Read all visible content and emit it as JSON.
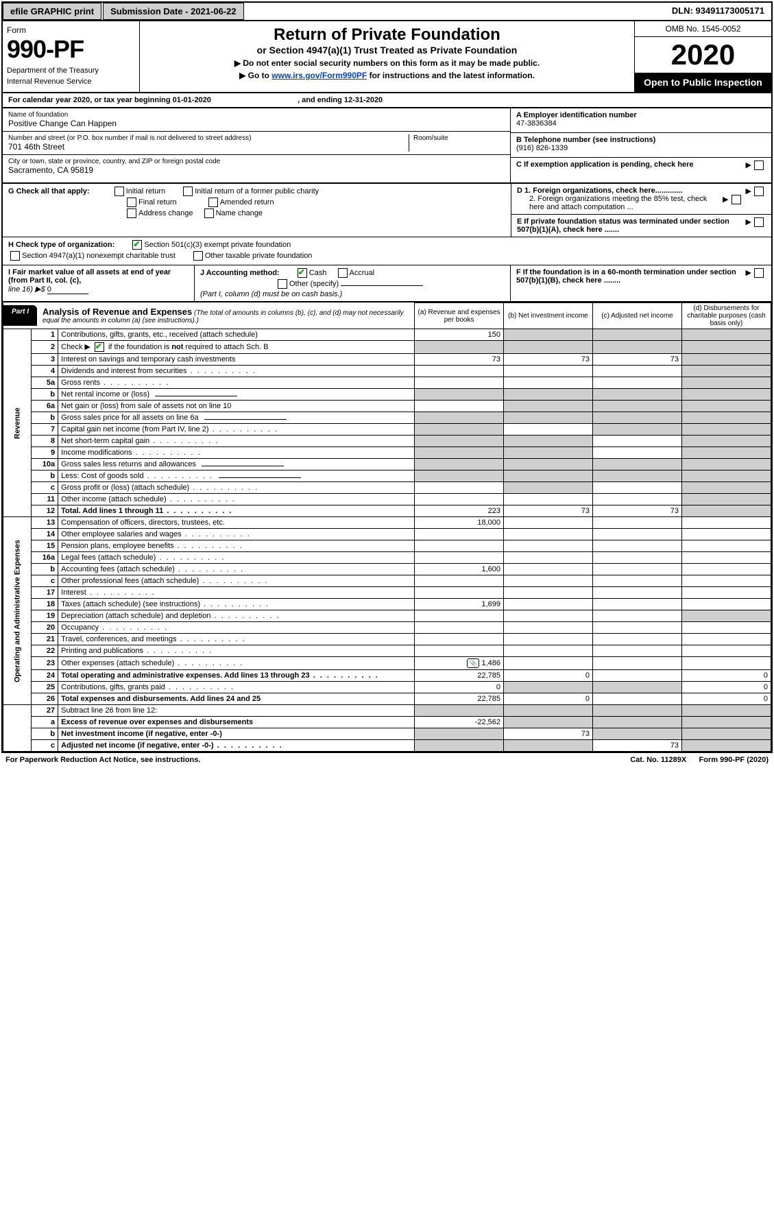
{
  "topbar": {
    "efile": "efile GRAPHIC print",
    "submission_label": "Submission Date - 2021-06-22",
    "dln": "DLN: 93491173005171"
  },
  "header": {
    "form_label": "Form",
    "form_number": "990-PF",
    "dept1": "Department of the Treasury",
    "dept2": "Internal Revenue Service",
    "title": "Return of Private Foundation",
    "subtitle": "or Section 4947(a)(1) Trust Treated as Private Foundation",
    "note1": "▶ Do not enter social security numbers on this form as it may be made public.",
    "note2_pre": "▶ Go to ",
    "note2_link": "www.irs.gov/Form990PF",
    "note2_post": " for instructions and the latest information.",
    "omb": "OMB No. 1545-0052",
    "year": "2020",
    "open": "Open to Public Inspection"
  },
  "year_row": {
    "prefix": "For calendar year 2020, or tax year beginning ",
    "begin": "01-01-2020",
    "mid": ", and ending ",
    "end": "12-31-2020"
  },
  "info": {
    "name_label": "Name of foundation",
    "name_val": "Positive Change Can Happen",
    "addr_label": "Number and street (or P.O. box number if mail is not delivered to street address)",
    "addr_val": "701 46th Street",
    "room_label": "Room/suite",
    "city_label": "City or town, state or province, country, and ZIP or foreign postal code",
    "city_val": "Sacramento, CA  95819",
    "a_label": "A Employer identification number",
    "a_val": "47-3836384",
    "b_label": "B Telephone number (see instructions)",
    "b_val": "(916) 826-1339",
    "c_label": "C  If exemption application is pending, check here",
    "d1_label": "D 1. Foreign organizations, check here.............",
    "d2_label": "2. Foreign organizations meeting the 85% test, check here and attach computation ...",
    "e_label": "E  If private foundation status was terminated under section 507(b)(1)(A), check here .......",
    "f_label": "F  If the foundation is in a 60-month termination under section 507(b)(1)(B), check here ........"
  },
  "g": {
    "label": "G Check all that apply:",
    "opts": [
      "Initial return",
      "Initial return of a former public charity",
      "Final return",
      "Amended return",
      "Address change",
      "Name change"
    ]
  },
  "h": {
    "label": "H Check type of organization:",
    "opt1": "Section 501(c)(3) exempt private foundation",
    "opt2": "Section 4947(a)(1) nonexempt charitable trust",
    "opt3": "Other taxable private foundation"
  },
  "i": {
    "label": "I Fair market value of all assets at end of year (from Part II, col. (c),",
    "line": "line 16) ▶$ ",
    "val": "0"
  },
  "j": {
    "label": "J Accounting method:",
    "cash": "Cash",
    "accrual": "Accrual",
    "other": "Other (specify)",
    "note": "(Part I, column (d) must be on cash basis.)"
  },
  "part1": {
    "tab": "Part I",
    "title": "Analysis of Revenue and Expenses",
    "sub": "(The total of amounts in columns (b), (c), and (d) may not necessarily equal the amounts in column (a) (see instructions).)",
    "col_a": "(a)   Revenue and expenses per books",
    "col_b": "(b)   Net investment income",
    "col_c": "(c)   Adjusted net income",
    "col_d": "(d)   Disbursements for charitable purposes (cash basis only)"
  },
  "side_labels": {
    "revenue": "Revenue",
    "expenses": "Operating and Administrative Expenses"
  },
  "rows": [
    {
      "n": "1",
      "desc": "Contributions, gifts, grants, etc., received (attach schedule)",
      "a": "150",
      "b_sh": true,
      "c_sh": true,
      "d_sh": true
    },
    {
      "n": "2",
      "desc": "Check ▶ ☑ if the foundation is not required to attach Sch. B",
      "dots": true,
      "a_sh": true,
      "b_sh": true,
      "c_sh": true,
      "d_sh": true,
      "checked": true
    },
    {
      "n": "3",
      "desc": "Interest on savings and temporary cash investments",
      "a": "73",
      "b": "73",
      "c": "73",
      "d_sh": true
    },
    {
      "n": "4",
      "desc": "Dividends and interest from securities",
      "dots": true,
      "d_sh": true
    },
    {
      "n": "5a",
      "desc": "Gross rents",
      "dots": true,
      "d_sh": true
    },
    {
      "n": "b",
      "desc": "Net rental income or (loss)",
      "under": true,
      "a_sh": true,
      "b_sh": true,
      "c_sh": true,
      "d_sh": true
    },
    {
      "n": "6a",
      "desc": "Net gain or (loss) from sale of assets not on line 10",
      "b_sh": true,
      "c_sh": true,
      "d_sh": true
    },
    {
      "n": "b",
      "desc": "Gross sales price for all assets on line 6a",
      "under": true,
      "a_sh": true,
      "b_sh": true,
      "c_sh": true,
      "d_sh": true
    },
    {
      "n": "7",
      "desc": "Capital gain net income (from Part IV, line 2)",
      "dots": true,
      "a_sh": true,
      "c_sh": true,
      "d_sh": true
    },
    {
      "n": "8",
      "desc": "Net short-term capital gain",
      "dots": true,
      "a_sh": true,
      "b_sh": true,
      "d_sh": true
    },
    {
      "n": "9",
      "desc": "Income modifications",
      "dots": true,
      "a_sh": true,
      "b_sh": true,
      "d_sh": true
    },
    {
      "n": "10a",
      "desc": "Gross sales less returns and allowances",
      "under": true,
      "a_sh": true,
      "b_sh": true,
      "c_sh": true,
      "d_sh": true
    },
    {
      "n": "b",
      "desc": "Less: Cost of goods sold",
      "dots": true,
      "under": true,
      "a_sh": true,
      "b_sh": true,
      "c_sh": true,
      "d_sh": true
    },
    {
      "n": "c",
      "desc": "Gross profit or (loss) (attach schedule)",
      "dots": true,
      "b_sh": true,
      "d_sh": true
    },
    {
      "n": "11",
      "desc": "Other income (attach schedule)",
      "dots": true,
      "d_sh": true
    },
    {
      "n": "12",
      "desc": "Total. Add lines 1 through 11",
      "dots": true,
      "bold": true,
      "a": "223",
      "b": "73",
      "c": "73",
      "d_sh": true
    }
  ],
  "exp_rows": [
    {
      "n": "13",
      "desc": "Compensation of officers, directors, trustees, etc.",
      "a": "18,000"
    },
    {
      "n": "14",
      "desc": "Other employee salaries and wages",
      "dots": true
    },
    {
      "n": "15",
      "desc": "Pension plans, employee benefits",
      "dots": true
    },
    {
      "n": "16a",
      "desc": "Legal fees (attach schedule)",
      "dots": true
    },
    {
      "n": "b",
      "desc": "Accounting fees (attach schedule)",
      "dots": true,
      "a": "1,600"
    },
    {
      "n": "c",
      "desc": "Other professional fees (attach schedule)",
      "dots": true
    },
    {
      "n": "17",
      "desc": "Interest",
      "dots": true
    },
    {
      "n": "18",
      "desc": "Taxes (attach schedule) (see instructions)",
      "dots": true,
      "a": "1,699"
    },
    {
      "n": "19",
      "desc": "Depreciation (attach schedule) and depletion",
      "dots": true,
      "d_sh": true
    },
    {
      "n": "20",
      "desc": "Occupancy",
      "dots": true
    },
    {
      "n": "21",
      "desc": "Travel, conferences, and meetings",
      "dots": true
    },
    {
      "n": "22",
      "desc": "Printing and publications",
      "dots": true
    },
    {
      "n": "23",
      "desc": "Other expenses (attach schedule)",
      "dots": true,
      "a": "1,486",
      "icon": true
    },
    {
      "n": "24",
      "desc": "Total operating and administrative expenses. Add lines 13 through 23",
      "dots": true,
      "bold": true,
      "a": "22,785",
      "b": "0",
      "d": "0"
    },
    {
      "n": "25",
      "desc": "Contributions, gifts, grants paid",
      "dots": true,
      "a": "0",
      "b_sh": true,
      "c_sh": true,
      "d": "0"
    },
    {
      "n": "26",
      "desc": "Total expenses and disbursements. Add lines 24 and 25",
      "bold": true,
      "a": "22,785",
      "b": "0",
      "d": "0"
    }
  ],
  "final_rows": [
    {
      "n": "27",
      "desc": "Subtract line 26 from line 12:",
      "a_sh": true,
      "b_sh": true,
      "c_sh": true,
      "d_sh": true
    },
    {
      "n": "a",
      "desc": "Excess of revenue over expenses and disbursements",
      "bold": true,
      "a": "-22,562",
      "b_sh": true,
      "c_sh": true,
      "d_sh": true
    },
    {
      "n": "b",
      "desc": "Net investment income (if negative, enter -0-)",
      "bold": true,
      "a_sh": true,
      "b": "73",
      "c_sh": true,
      "d_sh": true
    },
    {
      "n": "c",
      "desc": "Adjusted net income (if negative, enter -0-)",
      "dots": true,
      "bold": true,
      "a_sh": true,
      "b_sh": true,
      "c": "73",
      "d_sh": true
    }
  ],
  "footer": {
    "left": "For Paperwork Reduction Act Notice, see instructions.",
    "cat": "Cat. No. 11289X",
    "form": "Form 990-PF (2020)"
  }
}
